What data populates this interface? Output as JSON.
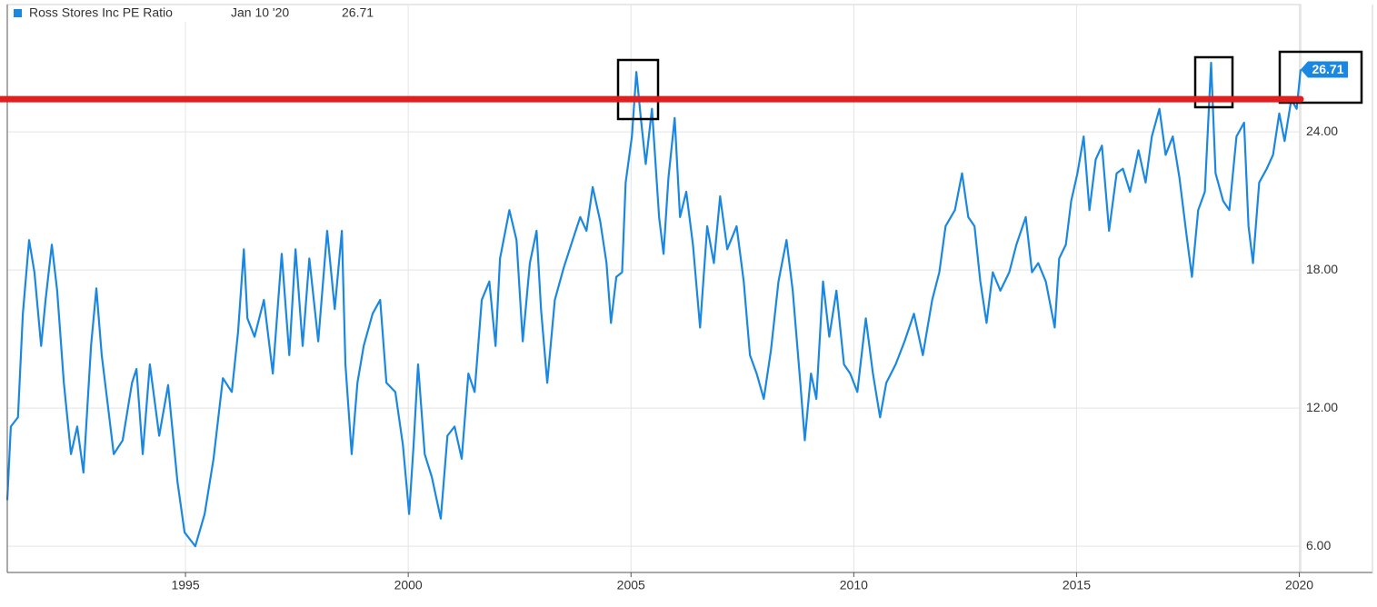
{
  "chart_data": {
    "type": "line",
    "legend_label": "Ross Stores Inc PE Ratio",
    "legend_date": "Jan 10 '20",
    "xlim": [
      1991,
      2020.03
    ],
    "ylim": [
      4.86,
      29.53
    ],
    "xticks": [
      1995,
      2000,
      2005,
      2010,
      2015,
      2020
    ],
    "yticks": [
      {
        "value": 6,
        "label": "6.00"
      },
      {
        "value": 12,
        "label": "12.00"
      },
      {
        "value": 18,
        "label": "18.00"
      },
      {
        "value": 24,
        "label": "24.00"
      }
    ],
    "grid": true,
    "reference_line": {
      "value": 25.42,
      "color": "#e02020"
    },
    "x": [
      1991.0,
      1991.08,
      1991.24,
      1991.35,
      1991.49,
      1991.61,
      1991.76,
      1991.86,
      1992.0,
      1992.12,
      1992.27,
      1992.43,
      1992.57,
      1992.71,
      1992.88,
      1993.0,
      1993.12,
      1993.24,
      1993.39,
      1993.59,
      1993.8,
      1993.9,
      1994.04,
      1994.2,
      1994.41,
      1994.61,
      1994.82,
      1994.98,
      1995.22,
      1995.43,
      1995.63,
      1995.84,
      1996.04,
      1996.18,
      1996.31,
      1996.39,
      1996.55,
      1996.76,
      1996.96,
      1997.16,
      1997.33,
      1997.47,
      1997.63,
      1997.78,
      1997.98,
      1998.18,
      1998.35,
      1998.51,
      1998.59,
      1998.73,
      1998.86,
      1999.0,
      1999.2,
      1999.37,
      1999.51,
      1999.71,
      1999.88,
      2000.02,
      2000.12,
      2000.22,
      2000.37,
      2000.53,
      2000.73,
      2000.88,
      2001.04,
      2001.2,
      2001.35,
      2001.49,
      2001.65,
      2001.82,
      2001.96,
      2002.06,
      2002.27,
      2002.43,
      2002.57,
      2002.73,
      2002.88,
      2002.98,
      2003.12,
      2003.29,
      2003.49,
      2003.69,
      2003.86,
      2004.0,
      2004.14,
      2004.31,
      2004.45,
      2004.55,
      2004.67,
      2004.8,
      2004.88,
      2005.02,
      2005.12,
      2005.22,
      2005.33,
      2005.47,
      2005.63,
      2005.73,
      2005.84,
      2005.98,
      2006.1,
      2006.24,
      2006.39,
      2006.55,
      2006.71,
      2006.86,
      2007.0,
      2007.16,
      2007.37,
      2007.53,
      2007.67,
      2007.82,
      2007.98,
      2008.14,
      2008.31,
      2008.49,
      2008.63,
      2008.8,
      2008.9,
      2009.04,
      2009.16,
      2009.31,
      2009.45,
      2009.61,
      2009.78,
      2009.92,
      2010.08,
      2010.27,
      2010.43,
      2010.59,
      2010.73,
      2010.94,
      2011.14,
      2011.35,
      2011.55,
      2011.76,
      2011.92,
      2012.06,
      2012.27,
      2012.43,
      2012.57,
      2012.71,
      2012.84,
      2012.98,
      2013.12,
      2013.29,
      2013.49,
      2013.65,
      2013.86,
      2014.0,
      2014.14,
      2014.31,
      2014.51,
      2014.61,
      2014.76,
      2014.88,
      2015.02,
      2015.16,
      2015.29,
      2015.43,
      2015.57,
      2015.73,
      2015.9,
      2016.04,
      2016.2,
      2016.39,
      2016.55,
      2016.69,
      2016.86,
      2017.0,
      2017.16,
      2017.31,
      2017.47,
      2017.59,
      2017.73,
      2017.88,
      2018.02,
      2018.12,
      2018.29,
      2018.43,
      2018.59,
      2018.76,
      2018.86,
      2018.96,
      2019.1,
      2019.27,
      2019.41,
      2019.55,
      2019.67,
      2019.82,
      2019.94,
      2020.03
    ],
    "series": [
      {
        "name": "Ross Stores Inc PE Ratio",
        "color": "#1a88e0",
        "values": [
          8.0,
          11.2,
          11.6,
          16.1,
          19.3,
          17.9,
          14.7,
          16.7,
          19.1,
          17.1,
          13.1,
          10.0,
          11.2,
          9.2,
          14.7,
          17.2,
          14.3,
          12.4,
          10.0,
          10.6,
          13.1,
          13.7,
          10.0,
          13.9,
          10.8,
          13.0,
          8.8,
          6.6,
          6.0,
          7.4,
          9.8,
          13.3,
          12.7,
          15.3,
          18.9,
          15.9,
          15.1,
          16.7,
          13.5,
          18.7,
          14.3,
          18.9,
          14.7,
          18.5,
          14.9,
          19.7,
          16.3,
          19.7,
          13.9,
          10.0,
          13.1,
          14.7,
          16.1,
          16.7,
          13.1,
          12.7,
          10.4,
          7.4,
          10.4,
          13.9,
          10.0,
          9.0,
          7.2,
          10.8,
          11.2,
          9.8,
          13.5,
          12.7,
          16.7,
          17.5,
          14.7,
          18.5,
          20.6,
          19.3,
          14.9,
          18.3,
          19.7,
          16.3,
          13.1,
          16.7,
          18.1,
          19.3,
          20.3,
          19.7,
          21.6,
          20.1,
          18.3,
          15.7,
          17.7,
          17.9,
          21.8,
          23.8,
          26.6,
          24.6,
          22.6,
          25.0,
          20.3,
          18.7,
          22.0,
          24.6,
          20.3,
          21.4,
          19.1,
          15.5,
          19.9,
          18.3,
          21.2,
          18.9,
          19.9,
          17.5,
          14.3,
          13.5,
          12.4,
          14.5,
          17.5,
          19.3,
          17.1,
          13.1,
          10.6,
          13.5,
          12.4,
          17.5,
          15.1,
          17.1,
          13.9,
          13.5,
          12.7,
          15.9,
          13.5,
          11.6,
          13.1,
          13.9,
          14.9,
          16.1,
          14.3,
          16.7,
          17.9,
          19.9,
          20.6,
          22.2,
          20.3,
          19.9,
          17.5,
          15.7,
          17.9,
          17.1,
          17.9,
          19.1,
          20.3,
          17.9,
          18.3,
          17.5,
          15.5,
          18.5,
          19.1,
          21.0,
          22.2,
          23.8,
          20.6,
          22.8,
          23.4,
          19.7,
          22.2,
          22.4,
          21.4,
          23.2,
          21.8,
          23.8,
          25.0,
          23.0,
          23.8,
          22.0,
          19.5,
          17.7,
          20.6,
          21.4,
          27.0,
          22.2,
          21.0,
          20.6,
          23.8,
          24.4,
          19.9,
          18.3,
          21.8,
          22.4,
          23.0,
          24.8,
          23.6,
          25.4,
          25.0,
          26.71
        ]
      }
    ]
  }
}
